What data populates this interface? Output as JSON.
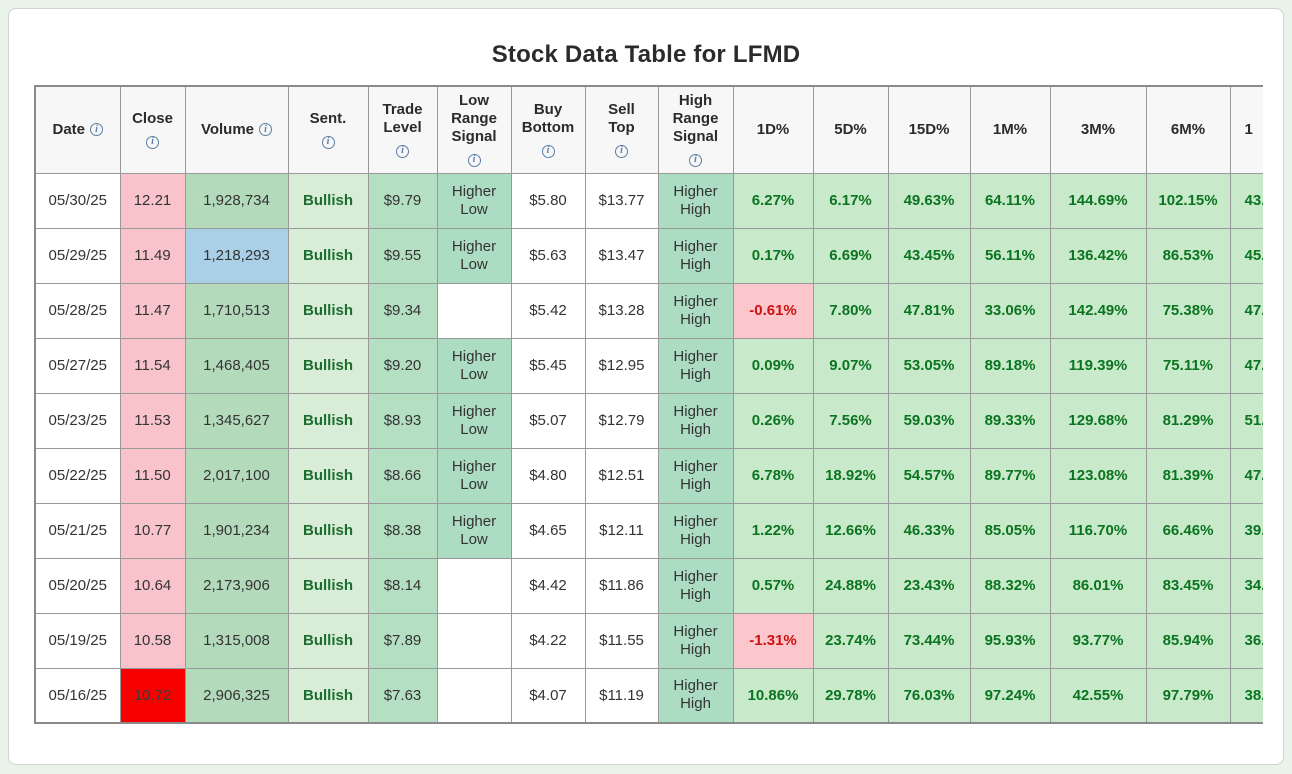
{
  "title": "Stock Data Table for LFMD",
  "icons": {
    "info_glyph": "i"
  },
  "theme": {
    "page_bg": "#e9f3ea",
    "card_border": "#ccd6cc",
    "table_border": "#8a8a8a",
    "cell_border": "#999999",
    "header_bg": "#f7f7f7",
    "header_text": "#2b2b2b",
    "body_text": "#333333",
    "info_icon": "#5b7fa8",
    "pink": "#f9c3cc",
    "bright_red": "#f80000",
    "red_cell_text": "#3c3c3c",
    "vol_green": "#b4dabc",
    "blue": "#a9d0e6",
    "sent_bg": "#d8ecd8",
    "sent_text": "#1c6e2e",
    "trade_bg": "#b4dfc2",
    "signal_bg": "#acdcc1",
    "pct_bg": "#c9eaca",
    "pct_text": "#0a7420",
    "neg_bg": "#fcc6cd",
    "neg_text": "#cc1111"
  },
  "table": {
    "columns": [
      {
        "id": "date",
        "lines": [
          "Date"
        ],
        "icon": true,
        "icon_inline": true
      },
      {
        "id": "close",
        "lines": [
          "Close"
        ],
        "icon": true,
        "icon_inline": false
      },
      {
        "id": "volume",
        "lines": [
          "Volume"
        ],
        "icon": true,
        "icon_inline": true
      },
      {
        "id": "sent",
        "lines": [
          "Sent."
        ],
        "icon": true,
        "icon_inline": false
      },
      {
        "id": "trade",
        "lines": [
          "Trade",
          "Level"
        ],
        "icon": true,
        "icon_inline": false
      },
      {
        "id": "low_signal",
        "lines": [
          "Low",
          "Range",
          "Signal"
        ],
        "icon": true,
        "icon_inline": false
      },
      {
        "id": "buy",
        "lines": [
          "Buy",
          "Bottom"
        ],
        "icon": true,
        "icon_inline": false
      },
      {
        "id": "sell",
        "lines": [
          "Sell",
          "Top"
        ],
        "icon": true,
        "icon_inline": false
      },
      {
        "id": "high_signal",
        "lines": [
          "High",
          "Range",
          "Signal"
        ],
        "icon": true,
        "icon_inline": false
      },
      {
        "id": "d1",
        "lines": [
          "1D%"
        ],
        "icon": false,
        "icon_inline": false
      },
      {
        "id": "d5",
        "lines": [
          "5D%"
        ],
        "icon": false,
        "icon_inline": false
      },
      {
        "id": "d15",
        "lines": [
          "15D%"
        ],
        "icon": false,
        "icon_inline": false
      },
      {
        "id": "m1",
        "lines": [
          "1M%"
        ],
        "icon": false,
        "icon_inline": false
      },
      {
        "id": "m3",
        "lines": [
          "3M%"
        ],
        "icon": false,
        "icon_inline": false
      },
      {
        "id": "m6",
        "lines": [
          "6M%"
        ],
        "icon": false,
        "icon_inline": false
      },
      {
        "id": "y1",
        "lines": [
          "1"
        ],
        "icon": false,
        "icon_inline": false,
        "truncated": true
      }
    ],
    "rows": [
      {
        "date": "05/30/25",
        "close": "12.21",
        "close_style": "pink",
        "volume": "1,928,734",
        "volume_style": "green",
        "sent": "Bullish",
        "trade": "$9.79",
        "low_signal": "Higher Low",
        "buy": "$5.80",
        "sell": "$13.77",
        "high_signal": "Higher High",
        "d1": "6.27%",
        "d5": "6.17%",
        "d15": "49.63%",
        "m1": "64.11%",
        "m3": "144.69%",
        "m6": "102.15%",
        "y1": "43."
      },
      {
        "date": "05/29/25",
        "close": "11.49",
        "close_style": "pink",
        "volume": "1,218,293",
        "volume_style": "blue",
        "sent": "Bullish",
        "trade": "$9.55",
        "low_signal": "Higher Low",
        "buy": "$5.63",
        "sell": "$13.47",
        "high_signal": "Higher High",
        "d1": "0.17%",
        "d5": "6.69%",
        "d15": "43.45%",
        "m1": "56.11%",
        "m3": "136.42%",
        "m6": "86.53%",
        "y1": "45."
      },
      {
        "date": "05/28/25",
        "close": "11.47",
        "close_style": "pink",
        "volume": "1,710,513",
        "volume_style": "green",
        "sent": "Bullish",
        "trade": "$9.34",
        "low_signal": "",
        "buy": "$5.42",
        "sell": "$13.28",
        "high_signal": "Higher High",
        "d1": "-0.61%",
        "d5": "7.80%",
        "d15": "47.81%",
        "m1": "33.06%",
        "m3": "142.49%",
        "m6": "75.38%",
        "y1": "47."
      },
      {
        "date": "05/27/25",
        "close": "11.54",
        "close_style": "pink",
        "volume": "1,468,405",
        "volume_style": "green",
        "sent": "Bullish",
        "trade": "$9.20",
        "low_signal": "Higher Low",
        "buy": "$5.45",
        "sell": "$12.95",
        "high_signal": "Higher High",
        "d1": "0.09%",
        "d5": "9.07%",
        "d15": "53.05%",
        "m1": "89.18%",
        "m3": "119.39%",
        "m6": "75.11%",
        "y1": "47."
      },
      {
        "date": "05/23/25",
        "close": "11.53",
        "close_style": "pink",
        "volume": "1,345,627",
        "volume_style": "green",
        "sent": "Bullish",
        "trade": "$8.93",
        "low_signal": "Higher Low",
        "buy": "$5.07",
        "sell": "$12.79",
        "high_signal": "Higher High",
        "d1": "0.26%",
        "d5": "7.56%",
        "d15": "59.03%",
        "m1": "89.33%",
        "m3": "129.68%",
        "m6": "81.29%",
        "y1": "51."
      },
      {
        "date": "05/22/25",
        "close": "11.50",
        "close_style": "pink",
        "volume": "2,017,100",
        "volume_style": "green",
        "sent": "Bullish",
        "trade": "$8.66",
        "low_signal": "Higher Low",
        "buy": "$4.80",
        "sell": "$12.51",
        "high_signal": "Higher High",
        "d1": "6.78%",
        "d5": "18.92%",
        "d15": "54.57%",
        "m1": "89.77%",
        "m3": "123.08%",
        "m6": "81.39%",
        "y1": "47."
      },
      {
        "date": "05/21/25",
        "close": "10.77",
        "close_style": "pink",
        "volume": "1,901,234",
        "volume_style": "green",
        "sent": "Bullish",
        "trade": "$8.38",
        "low_signal": "Higher Low",
        "buy": "$4.65",
        "sell": "$12.11",
        "high_signal": "Higher High",
        "d1": "1.22%",
        "d5": "12.66%",
        "d15": "46.33%",
        "m1": "85.05%",
        "m3": "116.70%",
        "m6": "66.46%",
        "y1": "39."
      },
      {
        "date": "05/20/25",
        "close": "10.64",
        "close_style": "pink",
        "volume": "2,173,906",
        "volume_style": "green",
        "sent": "Bullish",
        "trade": "$8.14",
        "low_signal": "",
        "buy": "$4.42",
        "sell": "$11.86",
        "high_signal": "Higher High",
        "d1": "0.57%",
        "d5": "24.88%",
        "d15": "23.43%",
        "m1": "88.32%",
        "m3": "86.01%",
        "m6": "83.45%",
        "y1": "34."
      },
      {
        "date": "05/19/25",
        "close": "10.58",
        "close_style": "pink",
        "volume": "1,315,008",
        "volume_style": "green",
        "sent": "Bullish",
        "trade": "$7.89",
        "low_signal": "",
        "buy": "$4.22",
        "sell": "$11.55",
        "high_signal": "Higher High",
        "d1": "-1.31%",
        "d5": "23.74%",
        "d15": "73.44%",
        "m1": "95.93%",
        "m3": "93.77%",
        "m6": "85.94%",
        "y1": "36."
      },
      {
        "date": "05/16/25",
        "close": "10.72",
        "close_style": "red",
        "volume": "2,906,325",
        "volume_style": "green",
        "sent": "Bullish",
        "trade": "$7.63",
        "low_signal": "",
        "buy": "$4.07",
        "sell": "$11.19",
        "high_signal": "Higher High",
        "d1": "10.86%",
        "d5": "29.78%",
        "d15": "76.03%",
        "m1": "97.24%",
        "m3": "42.55%",
        "m6": "97.79%",
        "y1": "38."
      }
    ]
  }
}
